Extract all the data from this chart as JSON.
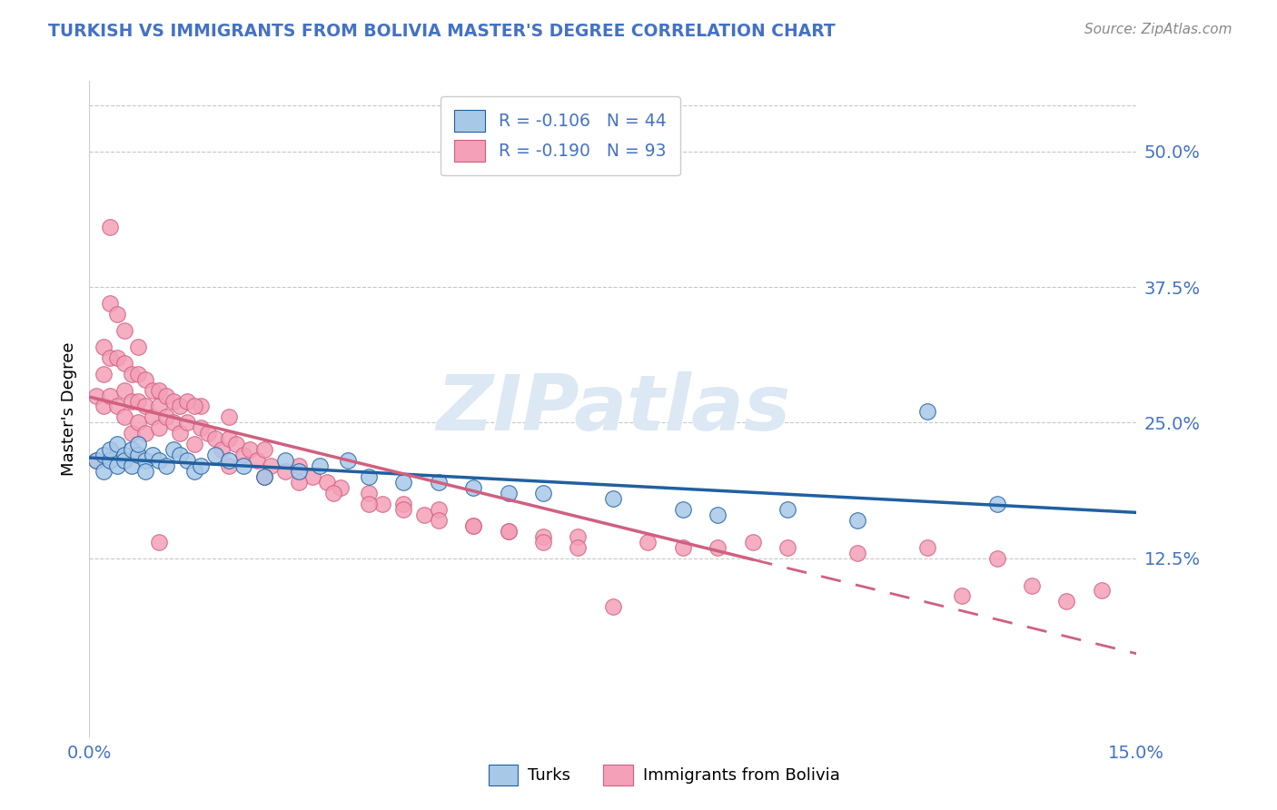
{
  "title": "TURKISH VS IMMIGRANTS FROM BOLIVIA MASTER'S DEGREE CORRELATION CHART",
  "source": "Source: ZipAtlas.com",
  "ylabel": "Master's Degree",
  "xlim": [
    0.0,
    0.15
  ],
  "ylim": [
    -0.04,
    0.565
  ],
  "yticks": [
    0.125,
    0.25,
    0.375,
    0.5
  ],
  "yticklabels": [
    "12.5%",
    "25.0%",
    "37.5%",
    "50.0%"
  ],
  "xtick_vals": [
    0.0,
    0.15
  ],
  "xtick_labels": [
    "0.0%",
    "15.0%"
  ],
  "turks_R": -0.106,
  "turks_N": 44,
  "bolivia_R": -0.19,
  "bolivia_N": 93,
  "turks_dot_color": "#a8c8e8",
  "bolivia_dot_color": "#f4a0b8",
  "turks_line_color": "#2060a0",
  "bolivia_line_color": "#d06080",
  "axis_label_color": "#4472c4",
  "title_color": "#4472c4",
  "grid_color": "#c8c8c8",
  "watermark_color": "#dce8f4",
  "source_color": "#888888",
  "bg_color": "#ffffff",
  "turks_x": [
    0.001,
    0.002,
    0.002,
    0.003,
    0.003,
    0.004,
    0.004,
    0.005,
    0.005,
    0.006,
    0.006,
    0.007,
    0.007,
    0.008,
    0.008,
    0.009,
    0.01,
    0.011,
    0.012,
    0.013,
    0.014,
    0.015,
    0.016,
    0.018,
    0.02,
    0.022,
    0.025,
    0.028,
    0.03,
    0.033,
    0.037,
    0.04,
    0.045,
    0.05,
    0.055,
    0.06,
    0.065,
    0.075,
    0.085,
    0.09,
    0.1,
    0.11,
    0.12,
    0.13
  ],
  "turks_y": [
    0.215,
    0.205,
    0.22,
    0.215,
    0.225,
    0.21,
    0.23,
    0.22,
    0.215,
    0.225,
    0.21,
    0.22,
    0.23,
    0.215,
    0.205,
    0.22,
    0.215,
    0.21,
    0.225,
    0.22,
    0.215,
    0.205,
    0.21,
    0.22,
    0.215,
    0.21,
    0.2,
    0.215,
    0.205,
    0.21,
    0.215,
    0.2,
    0.195,
    0.195,
    0.19,
    0.185,
    0.185,
    0.18,
    0.17,
    0.165,
    0.17,
    0.16,
    0.26,
    0.175
  ],
  "bolivia_x": [
    0.001,
    0.001,
    0.002,
    0.002,
    0.002,
    0.003,
    0.003,
    0.003,
    0.004,
    0.004,
    0.004,
    0.005,
    0.005,
    0.005,
    0.005,
    0.006,
    0.006,
    0.006,
    0.007,
    0.007,
    0.007,
    0.007,
    0.008,
    0.008,
    0.008,
    0.009,
    0.009,
    0.01,
    0.01,
    0.01,
    0.011,
    0.011,
    0.012,
    0.012,
    0.013,
    0.013,
    0.014,
    0.014,
    0.015,
    0.016,
    0.016,
    0.017,
    0.018,
    0.019,
    0.02,
    0.02,
    0.021,
    0.022,
    0.023,
    0.024,
    0.025,
    0.026,
    0.028,
    0.03,
    0.032,
    0.034,
    0.036,
    0.04,
    0.042,
    0.045,
    0.048,
    0.05,
    0.055,
    0.06,
    0.065,
    0.07,
    0.08,
    0.085,
    0.09,
    0.095,
    0.1,
    0.11,
    0.12,
    0.125,
    0.13,
    0.135,
    0.14,
    0.145,
    0.003,
    0.01,
    0.015,
    0.02,
    0.025,
    0.03,
    0.035,
    0.04,
    0.045,
    0.05,
    0.055,
    0.06,
    0.065,
    0.07,
    0.075
  ],
  "bolivia_y": [
    0.215,
    0.275,
    0.265,
    0.295,
    0.32,
    0.275,
    0.31,
    0.36,
    0.265,
    0.31,
    0.35,
    0.255,
    0.28,
    0.305,
    0.335,
    0.24,
    0.27,
    0.295,
    0.25,
    0.27,
    0.295,
    0.32,
    0.24,
    0.265,
    0.29,
    0.255,
    0.28,
    0.245,
    0.265,
    0.28,
    0.255,
    0.275,
    0.25,
    0.27,
    0.24,
    0.265,
    0.25,
    0.27,
    0.23,
    0.245,
    0.265,
    0.24,
    0.235,
    0.225,
    0.235,
    0.255,
    0.23,
    0.22,
    0.225,
    0.215,
    0.225,
    0.21,
    0.205,
    0.21,
    0.2,
    0.195,
    0.19,
    0.185,
    0.175,
    0.175,
    0.165,
    0.17,
    0.155,
    0.15,
    0.145,
    0.145,
    0.14,
    0.135,
    0.135,
    0.14,
    0.135,
    0.13,
    0.135,
    0.09,
    0.125,
    0.1,
    0.085,
    0.095,
    0.43,
    0.14,
    0.265,
    0.21,
    0.2,
    0.195,
    0.185,
    0.175,
    0.17,
    0.16,
    0.155,
    0.15,
    0.14,
    0.135,
    0.08
  ]
}
